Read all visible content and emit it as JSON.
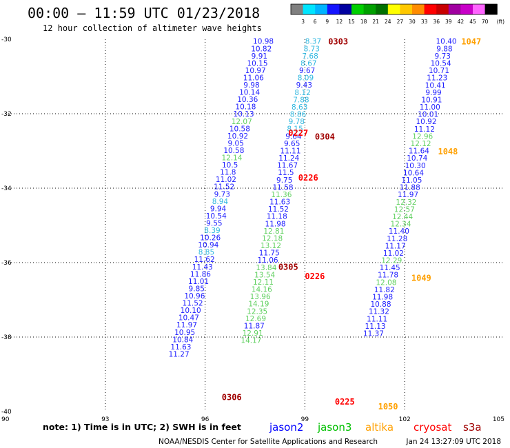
{
  "header": {
    "title": "00:00 – 11:59 UTC 01/23/2018",
    "subtitle": "12 hour collection of altimeter wave heights"
  },
  "footer": {
    "note": "note: 1) Time is in UTC; 2) SWH is in feet",
    "credit": "NOAA/NESDIS Center for Satellite Applications and Research",
    "timestamp": "Jan 24 13:27:09 UTC 2018"
  },
  "chart_data": {
    "type": "scatter",
    "xlim": [
      90,
      105
    ],
    "ylim": [
      -40,
      -30
    ],
    "x_ticks": [
      90,
      93,
      96,
      99,
      102,
      105
    ],
    "y_ticks": [
      -30,
      -32,
      -34,
      -36,
      -38,
      -40
    ],
    "grid": true,
    "colorscale": {
      "unit": "(ft)",
      "labels": [
        "3",
        "6",
        "9",
        "12",
        "15",
        "18",
        "21",
        "24",
        "27",
        "30",
        "33",
        "36",
        "39",
        "42",
        "45",
        "70"
      ],
      "colors": [
        "#808080",
        "#00e5ff",
        "#00b4ff",
        "#1414ff",
        "#0000a0",
        "#00d000",
        "#00a000",
        "#007000",
        "#ffff00",
        "#ffc800",
        "#ff8c00",
        "#ff0000",
        "#c80000",
        "#a000a0",
        "#c800c8",
        "#ff64ff",
        "#000000"
      ]
    },
    "legend": [
      {
        "name": "jason2",
        "color": "#0000ff"
      },
      {
        "name": "jason3",
        "color": "#00c000"
      },
      {
        "name": "altika",
        "color": "#ffa000"
      },
      {
        "name": "cryosat",
        "color": "#ff0000"
      },
      {
        "name": "s3a",
        "color": "#a00000"
      }
    ],
    "value_colors": {
      "blue": "#2020ff",
      "green": "#60d060",
      "cyan": "#30b8e0"
    },
    "tracks": [
      {
        "x": 97.75,
        "y0": -30.05,
        "dx": -0.059,
        "dy": 0.1954,
        "c": "blue",
        "v": [
          "10.98",
          "10.82",
          "9.91",
          "10.15",
          "10.97",
          "11.06",
          "9.98",
          "10.14",
          "10.36",
          "10.18",
          "10.13",
          "12.07",
          "10.58",
          "10.92",
          "9.05",
          "10.58",
          "12.14",
          "10.5",
          "11.8",
          "11.02",
          "11.52",
          "9.73",
          "8.94",
          "9.94",
          "10.54",
          "9.55",
          "8.39",
          "10.26",
          "10.94",
          "8.85",
          "11.62",
          "11.43",
          "11.86",
          "11.01",
          "9.85",
          "10.96",
          "11.52",
          "10.10",
          "10.47",
          "11.97",
          "10.95",
          "10.84",
          "11.63",
          "11.27"
        ],
        "cm": {
          "11": "green",
          "16": "green",
          "22": "cyan",
          "26": "cyan",
          "29": "cyan"
        }
      },
      {
        "x": 99.25,
        "y0": -30.05,
        "dx": -0.0455,
        "dy": 0.196,
        "c": "cyan",
        "v": [
          "8.37",
          "8.73",
          "7.68",
          "8.67",
          "9.67",
          "8.09",
          "9.43",
          "8.12",
          "7.88",
          "8.63",
          "8.86",
          "9.78",
          "8.15",
          "9.64",
          "9.65",
          "11.11",
          "11.24",
          "11.67",
          "11.5",
          "9.75",
          "11.58",
          "11.36",
          "11.63",
          "11.52",
          "11.18",
          "11.98",
          "12.81",
          "12.18",
          "13.12",
          "11.75",
          "11.06",
          "13.84",
          "13.54",
          "12.11",
          "14.16",
          "13.96",
          "14.19",
          "12.35",
          "12.69",
          "11.87",
          "12.91",
          "14.17"
        ],
        "cm": {
          "4": "blue",
          "6": "blue",
          "13": "blue",
          "14": "blue",
          "15": "blue",
          "16": "blue",
          "17": "blue",
          "18": "blue",
          "19": "blue",
          "20": "blue",
          "21": "green",
          "22": "blue",
          "23": "blue",
          "24": "blue",
          "25": "blue",
          "26": "green",
          "27": "green",
          "28": "green",
          "29": "blue",
          "30": "blue",
          "31": "green",
          "32": "green",
          "33": "green",
          "34": "green",
          "35": "green",
          "36": "green",
          "37": "green",
          "38": "green",
          "39": "blue",
          "40": "green",
          "41": "green"
        }
      },
      {
        "x": 103.25,
        "y0": -30.05,
        "dx": -0.0547,
        "dy": 0.1962,
        "c": "blue",
        "v": [
          "10.40",
          "9.88",
          "9.73",
          "10.54",
          "10.71",
          "11.23",
          "10.41",
          "9.99",
          "10.91",
          "11.00",
          "10.01",
          "10.92",
          "11.12",
          "12.96",
          "12.12",
          "11.64",
          "10.74",
          "10.30",
          "10.64",
          "11.05",
          "11.88",
          "11.97",
          "12.32",
          "12.57",
          "12.44",
          "12.34",
          "11.40",
          "11.28",
          "11.17",
          "11.02",
          "12.29",
          "11.45",
          "11.78",
          "12.08",
          "11.82",
          "11.98",
          "10.88",
          "11.32",
          "11.11",
          "11.13",
          "11.37"
        ],
        "cm": {
          "13": "green",
          "14": "green",
          "22": "green",
          "23": "green",
          "24": "green",
          "25": "green",
          "30": "green",
          "33": "green"
        }
      }
    ],
    "time_labels": [
      {
        "text": "0303",
        "x": 100.0,
        "y": -30.05,
        "c": "#a00000"
      },
      {
        "text": "1047",
        "x": 104.0,
        "y": -30.05,
        "c": "#ffa000"
      },
      {
        "text": "0227",
        "x": 98.8,
        "y": -32.5,
        "c": "#ff0000"
      },
      {
        "text": "0304",
        "x": 99.6,
        "y": -32.6,
        "c": "#a00000"
      },
      {
        "text": "1048",
        "x": 103.3,
        "y": -33.0,
        "c": "#ffa000"
      },
      {
        "text": "0226",
        "x": 99.1,
        "y": -33.7,
        "c": "#ff0000"
      },
      {
        "text": "0305",
        "x": 98.5,
        "y": -36.1,
        "c": "#a00000"
      },
      {
        "text": "0226",
        "x": 99.3,
        "y": -36.35,
        "c": "#ff0000"
      },
      {
        "text": "1049",
        "x": 102.5,
        "y": -36.4,
        "c": "#ffa000"
      },
      {
        "text": "0306",
        "x": 96.8,
        "y": -39.6,
        "c": "#a00000"
      },
      {
        "text": "0225",
        "x": 100.2,
        "y": -39.72,
        "c": "#ff0000"
      },
      {
        "text": "1050",
        "x": 101.5,
        "y": -39.85,
        "c": "#ffa000"
      }
    ]
  }
}
